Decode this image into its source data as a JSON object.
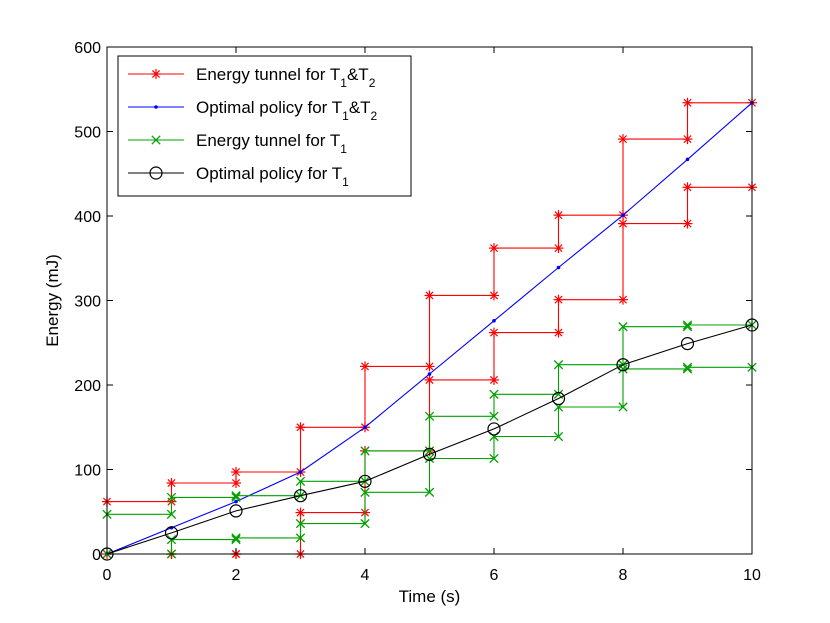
{
  "chart_data": {
    "type": "line",
    "title": "",
    "xlabel": "Time (s)",
    "ylabel": "Energy (mJ)",
    "xlim": [
      0,
      10
    ],
    "ylim": [
      0,
      600
    ],
    "xticks": [
      0,
      2,
      4,
      6,
      8,
      10
    ],
    "yticks": [
      0,
      100,
      200,
      300,
      400,
      500,
      600
    ],
    "grid": false,
    "legend_position": "top-left",
    "series": [
      {
        "name": "Energy tunnel for T1&T2",
        "legend": {
          "a": "Energy tunnel for T",
          "s1": "1",
          "b": "&T",
          "s2": "2"
        },
        "color": "#ff0000",
        "marker": "asterisk",
        "style": "step",
        "upper": {
          "x": [
            0,
            1,
            1,
            2,
            2,
            3,
            3,
            4,
            4,
            5,
            5,
            6,
            6,
            7,
            7,
            8,
            8,
            9,
            9,
            10
          ],
          "y": [
            62,
            62,
            84,
            84,
            97,
            97,
            150,
            150,
            222,
            222,
            306,
            306,
            362,
            362,
            401,
            401,
            491,
            491,
            534,
            534
          ]
        },
        "lower": {
          "x": [
            0,
            1,
            1,
            2,
            2,
            3,
            3,
            4,
            4,
            5,
            5,
            6,
            6,
            7,
            7,
            8,
            8,
            9,
            9,
            10
          ],
          "y": [
            0,
            0,
            0,
            0,
            0,
            0,
            49,
            49,
            122,
            122,
            206,
            206,
            262,
            262,
            301,
            301,
            391,
            391,
            434,
            434
          ]
        }
      },
      {
        "name": "Optimal policy for T1&T2",
        "legend": {
          "a": "Optimal policy for T",
          "s1": "1",
          "b": "&T",
          "s2": "2"
        },
        "color": "#0000ff",
        "marker": "dot",
        "x": [
          0,
          1,
          2,
          3,
          4,
          5,
          6,
          7,
          8,
          9,
          10
        ],
        "y": [
          0,
          31,
          62,
          97,
          150,
          213,
          276,
          339,
          401,
          467,
          534
        ]
      },
      {
        "name": "Energy tunnel for T1",
        "legend": {
          "a": "Energy tunnel for T",
          "s1": "1"
        },
        "color": "#00a000",
        "marker": "x",
        "style": "step",
        "upper": {
          "x": [
            0,
            1,
            1,
            2,
            2,
            3,
            3,
            4,
            4,
            5,
            5,
            6,
            6,
            7,
            7,
            8,
            8,
            9,
            9,
            10
          ],
          "y": [
            47,
            47,
            67,
            67,
            69,
            69,
            86,
            86,
            122,
            122,
            163,
            163,
            189,
            189,
            224,
            224,
            269,
            269,
            271,
            271
          ]
        },
        "lower": {
          "x": [
            0,
            1,
            1,
            2,
            2,
            3,
            3,
            4,
            4,
            5,
            5,
            6,
            6,
            7,
            7,
            8,
            8,
            9,
            9,
            10
          ],
          "y": [
            0,
            0,
            17,
            17,
            19,
            19,
            36,
            36,
            73,
            73,
            113,
            113,
            139,
            139,
            174,
            174,
            219,
            219,
            221,
            221
          ]
        }
      },
      {
        "name": "Optimal policy for T1",
        "legend": {
          "a": "Optimal policy for T",
          "s1": "1"
        },
        "color": "#000000",
        "marker": "circle",
        "x": [
          0,
          1,
          2,
          3,
          4,
          5,
          6,
          7,
          8,
          9,
          10
        ],
        "y": [
          0,
          25,
          51,
          69,
          86,
          118,
          148,
          184,
          224,
          249,
          271
        ]
      }
    ]
  }
}
